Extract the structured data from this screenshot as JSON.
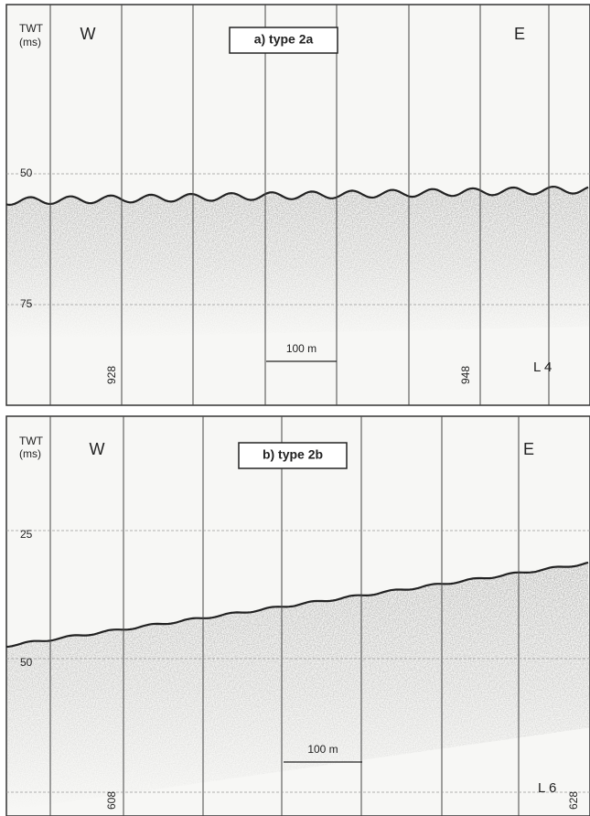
{
  "panels": [
    {
      "title": "a) type 2a",
      "axis_label": "TWT",
      "axis_unit": "(ms)",
      "west": "W",
      "east": "E",
      "ticks": [
        "50",
        "75"
      ],
      "fixes": [
        "928",
        "948"
      ],
      "scale": "100 m",
      "line": "L 4"
    },
    {
      "title": "b) type 2b",
      "axis_label": "TWT",
      "axis_unit": "(ms)",
      "west": "W",
      "east": "E",
      "ticks": [
        "25",
        "50"
      ],
      "fixes": [
        "608",
        "628"
      ],
      "scale": "100 m",
      "line": "L 6"
    }
  ]
}
